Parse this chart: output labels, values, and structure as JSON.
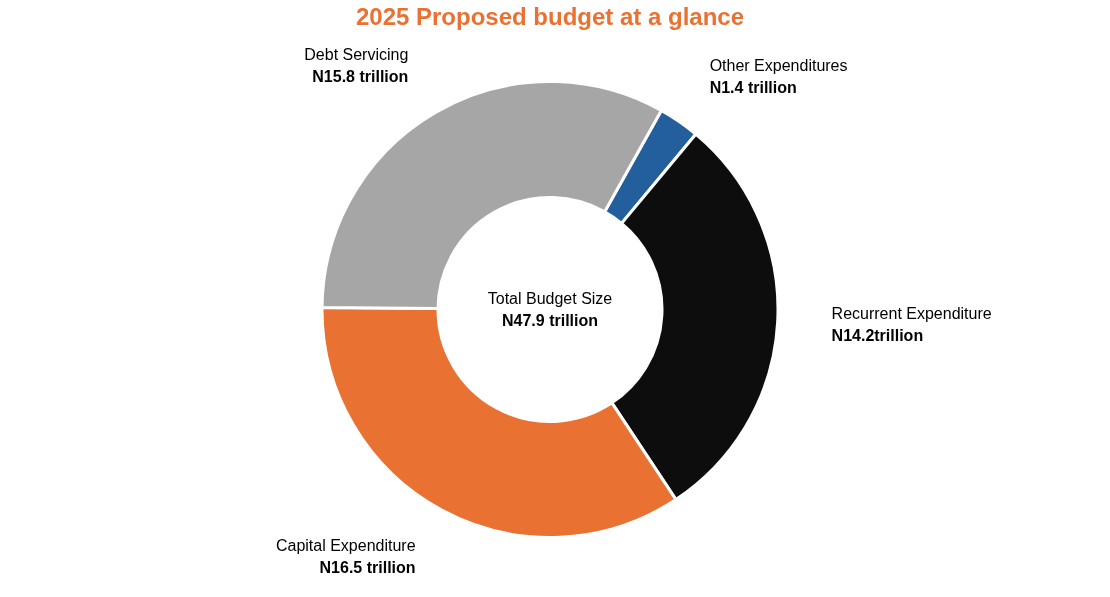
{
  "chart_data": {
    "type": "donut",
    "title": "2025 Proposed budget at a glance",
    "categories": [
      "Other Expenditures",
      "Recurrent Expenditure",
      "Capital Expenditure",
      "Debt Servicing"
    ],
    "values": [
      1.4,
      14.2,
      16.5,
      15.8
    ],
    "value_labels": [
      "N1.4 trillion",
      "N14.2trillion",
      "N16.5 trillion",
      "N15.8 trillion"
    ],
    "colors": [
      "#235f9c",
      "#0d0d0d",
      "#e97132",
      "#a6a6a6"
    ],
    "annotations": [
      "Total Budget Size",
      "N47.9 trillion"
    ],
    "legend": false
  }
}
